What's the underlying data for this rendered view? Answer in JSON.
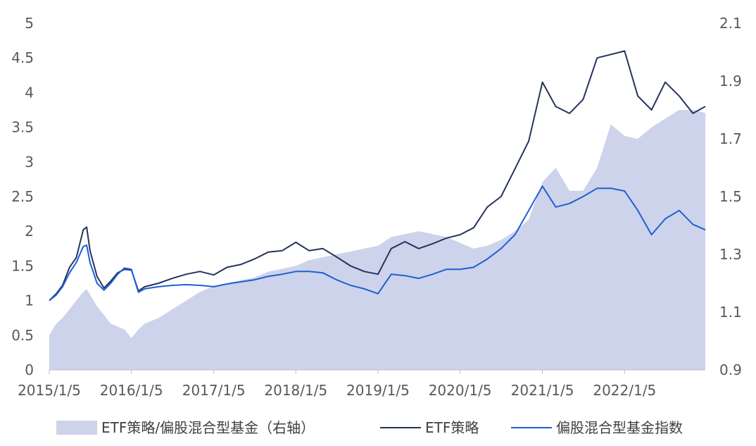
{
  "chart_data": {
    "type": "line",
    "x_axis": {
      "tick_labels": [
        "2015/1/5",
        "2016/1/5",
        "2017/1/5",
        "2018/1/5",
        "2019/1/5",
        "2020/1/5",
        "2021/1/5",
        "2022/1/5"
      ],
      "range": [
        "2015-01-05",
        "2022-12-30"
      ]
    },
    "y_left": {
      "ylim": [
        0,
        5
      ],
      "tick_labels": [
        "0",
        "0.5",
        "1",
        "1.5",
        "2",
        "2.5",
        "3",
        "3.5",
        "4",
        "4.5",
        "5"
      ]
    },
    "y_right": {
      "ylim": [
        0.9,
        2.1
      ],
      "tick_labels": [
        "0.9",
        "1.1",
        "1.3",
        "1.5",
        "1.7",
        "1.9",
        "2.1"
      ]
    },
    "grid": false,
    "legend_position": "bottom",
    "legend": [
      {
        "label": "ETF策略/偏股混合型基金（右轴）",
        "kind": "area",
        "color": "#cdd3ea"
      },
      {
        "label": "ETF策略",
        "kind": "line",
        "color": "#26335f"
      },
      {
        "label": "偏股混合型基金指数",
        "kind": "line",
        "color": "#1f5fd6"
      }
    ],
    "series": [
      {
        "name": "ETF策略/偏股混合型基金（右轴）",
        "axis": "right",
        "x": [
          "2015-01-05",
          "2015-02-05",
          "2015-03-05",
          "2015-04-05",
          "2015-05-05",
          "2015-06-05",
          "2015-06-20",
          "2015-07-05",
          "2015-08-05",
          "2015-09-05",
          "2015-10-05",
          "2015-11-05",
          "2015-12-05",
          "2016-01-05",
          "2016-02-05",
          "2016-03-05",
          "2016-05-05",
          "2016-07-05",
          "2016-09-05",
          "2016-11-05",
          "2017-01-05",
          "2017-03-05",
          "2017-05-05",
          "2017-07-05",
          "2017-09-05",
          "2017-11-05",
          "2018-01-05",
          "2018-03-05",
          "2018-05-05",
          "2018-07-05",
          "2018-09-05",
          "2018-11-05",
          "2019-01-05",
          "2019-03-05",
          "2019-05-05",
          "2019-07-05",
          "2019-09-05",
          "2019-11-05",
          "2020-01-05",
          "2020-03-05",
          "2020-05-05",
          "2020-07-05",
          "2020-09-05",
          "2020-11-05",
          "2021-01-05",
          "2021-03-05",
          "2021-05-05",
          "2021-07-05",
          "2021-09-05",
          "2021-11-05",
          "2022-01-05",
          "2022-03-05",
          "2022-05-05",
          "2022-07-05",
          "2022-09-05",
          "2022-11-05",
          "2022-12-30"
        ],
        "values": [
          1.02,
          1.06,
          1.08,
          1.11,
          1.14,
          1.17,
          1.18,
          1.16,
          1.12,
          1.09,
          1.06,
          1.05,
          1.04,
          1.01,
          1.04,
          1.06,
          1.08,
          1.11,
          1.14,
          1.17,
          1.19,
          1.2,
          1.21,
          1.22,
          1.24,
          1.25,
          1.26,
          1.28,
          1.29,
          1.3,
          1.31,
          1.32,
          1.33,
          1.36,
          1.37,
          1.38,
          1.37,
          1.36,
          1.34,
          1.32,
          1.33,
          1.35,
          1.38,
          1.42,
          1.55,
          1.6,
          1.52,
          1.52,
          1.6,
          1.75,
          1.71,
          1.7,
          1.74,
          1.77,
          1.8,
          1.8,
          1.79
        ]
      },
      {
        "name": "ETF策略",
        "axis": "left",
        "x": [
          "2015-01-05",
          "2015-02-05",
          "2015-03-05",
          "2015-04-05",
          "2015-05-05",
          "2015-06-05",
          "2015-06-20",
          "2015-07-05",
          "2015-08-05",
          "2015-09-05",
          "2015-10-05",
          "2015-11-05",
          "2015-12-05",
          "2016-01-05",
          "2016-02-05",
          "2016-03-05",
          "2016-05-05",
          "2016-07-05",
          "2016-09-05",
          "2016-11-05",
          "2017-01-05",
          "2017-03-05",
          "2017-05-05",
          "2017-07-05",
          "2017-09-05",
          "2017-11-05",
          "2018-01-05",
          "2018-03-05",
          "2018-05-05",
          "2018-07-05",
          "2018-09-05",
          "2018-11-05",
          "2019-01-05",
          "2019-03-05",
          "2019-05-05",
          "2019-07-05",
          "2019-09-05",
          "2019-11-05",
          "2020-01-05",
          "2020-03-05",
          "2020-05-05",
          "2020-07-05",
          "2020-09-05",
          "2020-11-05",
          "2021-01-05",
          "2021-03-05",
          "2021-05-05",
          "2021-07-05",
          "2021-09-05",
          "2021-11-05",
          "2022-01-05",
          "2022-03-05",
          "2022-05-05",
          "2022-07-05",
          "2022-09-05",
          "2022-11-05",
          "2022-12-30"
        ],
        "values": [
          1.0,
          1.1,
          1.22,
          1.48,
          1.62,
          2.02,
          2.06,
          1.72,
          1.35,
          1.18,
          1.28,
          1.4,
          1.45,
          1.44,
          1.14,
          1.2,
          1.25,
          1.32,
          1.38,
          1.42,
          1.37,
          1.48,
          1.52,
          1.6,
          1.7,
          1.72,
          1.84,
          1.72,
          1.75,
          1.63,
          1.5,
          1.42,
          1.38,
          1.75,
          1.85,
          1.75,
          1.82,
          1.9,
          1.95,
          2.05,
          2.35,
          2.5,
          2.9,
          3.3,
          4.15,
          3.8,
          3.7,
          3.9,
          4.5,
          4.55,
          4.6,
          3.95,
          3.75,
          4.15,
          3.95,
          3.7,
          3.8
        ]
      },
      {
        "name": "偏股混合型基金指数",
        "axis": "left",
        "x": [
          "2015-01-05",
          "2015-02-05",
          "2015-03-05",
          "2015-04-05",
          "2015-05-05",
          "2015-06-05",
          "2015-06-20",
          "2015-07-05",
          "2015-08-05",
          "2015-09-05",
          "2015-10-05",
          "2015-11-05",
          "2015-12-05",
          "2016-01-05",
          "2016-02-05",
          "2016-03-05",
          "2016-05-05",
          "2016-07-05",
          "2016-09-05",
          "2016-11-05",
          "2017-01-05",
          "2017-03-05",
          "2017-05-05",
          "2017-07-05",
          "2017-09-05",
          "2017-11-05",
          "2018-01-05",
          "2018-03-05",
          "2018-05-05",
          "2018-07-05",
          "2018-09-05",
          "2018-11-05",
          "2019-01-05",
          "2019-03-05",
          "2019-05-05",
          "2019-07-05",
          "2019-09-05",
          "2019-11-05",
          "2020-01-05",
          "2020-03-05",
          "2020-05-05",
          "2020-07-05",
          "2020-09-05",
          "2020-11-05",
          "2021-01-05",
          "2021-03-05",
          "2021-05-05",
          "2021-07-05",
          "2021-09-05",
          "2021-11-05",
          "2022-01-05",
          "2022-03-05",
          "2022-05-05",
          "2022-07-05",
          "2022-09-05",
          "2022-11-05",
          "2022-12-30"
        ],
        "values": [
          1.0,
          1.08,
          1.2,
          1.4,
          1.55,
          1.78,
          1.8,
          1.55,
          1.25,
          1.15,
          1.25,
          1.38,
          1.47,
          1.45,
          1.12,
          1.17,
          1.2,
          1.22,
          1.23,
          1.22,
          1.2,
          1.24,
          1.27,
          1.3,
          1.35,
          1.38,
          1.42,
          1.42,
          1.4,
          1.3,
          1.22,
          1.17,
          1.1,
          1.38,
          1.36,
          1.32,
          1.38,
          1.45,
          1.45,
          1.48,
          1.6,
          1.75,
          1.95,
          2.3,
          2.65,
          2.35,
          2.4,
          2.5,
          2.62,
          2.62,
          2.58,
          2.3,
          1.95,
          2.18,
          2.3,
          2.1,
          2.02
        ]
      }
    ]
  }
}
